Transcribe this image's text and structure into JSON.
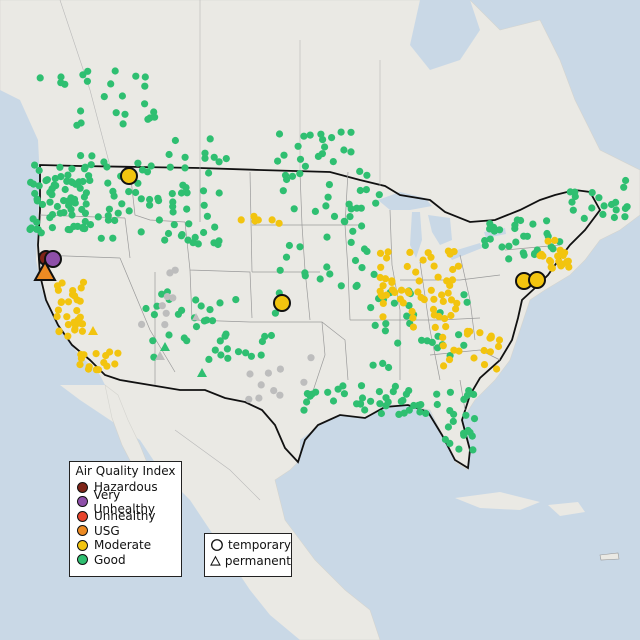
{
  "legend": {
    "title": "Air Quality Index",
    "categories": [
      {
        "label": "Hazardous",
        "color": "#7e2418"
      },
      {
        "label": "Very Unhealthy",
        "color": "#8e4fa9"
      },
      {
        "label": "Unhealthy",
        "color": "#e8442c"
      },
      {
        "label": "USG",
        "color": "#ec8a23"
      },
      {
        "label": "Moderate",
        "color": "#f2c40f"
      },
      {
        "label": "Good",
        "color": "#2fbf71"
      }
    ]
  },
  "site_legend": {
    "temporary": "temporary",
    "permanent": "permanent"
  },
  "colors": {
    "ocean": "#c9d8e6",
    "land": "#eae9e4",
    "monitor_none": "#bdbdbd"
  }
}
